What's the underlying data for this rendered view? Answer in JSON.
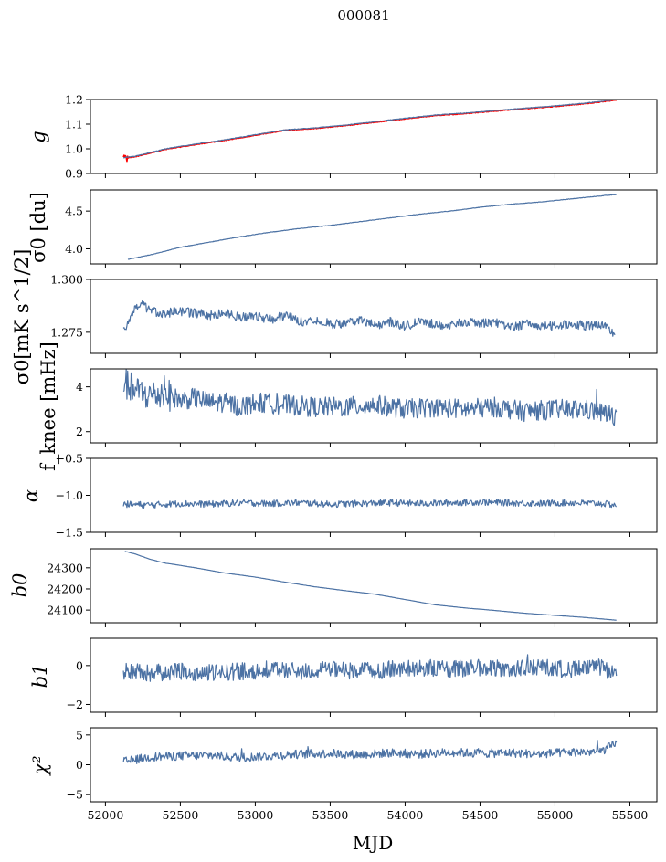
{
  "title": "000081",
  "line_color": "#4c72a4",
  "fit_color": "#ff0000",
  "chart_data": [
    {
      "type": "line",
      "ylabel": "g",
      "ylim": [
        0.9,
        1.2
      ],
      "yticks": [
        0.9,
        1.0,
        1.1,
        1.2
      ],
      "ytick_labels": [
        "0.9",
        "1.0",
        "1.1",
        "1.2"
      ],
      "series": [
        {
          "x": [
            52120,
            52200,
            52400,
            52600,
            52800,
            53000,
            53200,
            53400,
            53600,
            53800,
            54000,
            54200,
            54400,
            54600,
            54800,
            55000,
            55200,
            55410
          ],
          "y": [
            0.962,
            0.968,
            0.998,
            1.017,
            1.035,
            1.055,
            1.075,
            1.083,
            1.094,
            1.108,
            1.122,
            1.135,
            1.143,
            1.153,
            1.163,
            1.172,
            1.183,
            1.198
          ]
        },
        {
          "x": [
            52120,
            52200,
            52400,
            52600,
            52800,
            53000,
            53200,
            53400,
            53600,
            53800,
            54000,
            54200,
            54400,
            54600,
            54800,
            55000,
            55200,
            55410
          ],
          "y": [
            0.964,
            0.97,
            1.0,
            1.019,
            1.037,
            1.057,
            1.077,
            1.085,
            1.096,
            1.11,
            1.124,
            1.137,
            1.145,
            1.155,
            1.165,
            1.174,
            1.185,
            1.2
          ]
        }
      ]
    },
    {
      "type": "line",
      "ylabel": "σ0 [du]",
      "ylim": [
        3.8,
        4.78
      ],
      "yticks": [
        4.0,
        4.5
      ],
      "ytick_labels": [
        "4.0",
        "4.5"
      ],
      "series": [
        {
          "x": [
            52150,
            52300,
            52500,
            52700,
            52900,
            53100,
            53300,
            53500,
            53700,
            53900,
            54100,
            54300,
            54500,
            54700,
            54900,
            55100,
            55300,
            55410
          ],
          "y": [
            3.86,
            3.92,
            4.02,
            4.09,
            4.16,
            4.22,
            4.27,
            4.31,
            4.36,
            4.41,
            4.46,
            4.5,
            4.55,
            4.59,
            4.62,
            4.66,
            4.7,
            4.72
          ]
        }
      ]
    },
    {
      "type": "line",
      "ylabel": "σ0[mK s^1/2]",
      "ylim": [
        1.265,
        1.3
      ],
      "yticks": [
        1.275,
        1.3
      ],
      "ytick_labels": [
        "1.275",
        "1.300"
      ],
      "series": [
        {
          "x": [
            52120,
            52150,
            52200,
            52250,
            52300,
            52400,
            52500,
            52600,
            52700,
            52800,
            52900,
            53000,
            53100,
            53200,
            53300,
            53400,
            53500,
            53600,
            53700,
            53800,
            53900,
            54000,
            54100,
            54200,
            54300,
            54400,
            54500,
            54600,
            54700,
            54800,
            54900,
            55000,
            55100,
            55200,
            55300,
            55400
          ],
          "y": [
            1.276,
            1.279,
            1.286,
            1.288,
            1.285,
            1.284,
            1.285,
            1.284,
            1.283,
            1.284,
            1.282,
            1.283,
            1.281,
            1.283,
            1.28,
            1.281,
            1.279,
            1.279,
            1.281,
            1.278,
            1.28,
            1.278,
            1.28,
            1.279,
            1.278,
            1.28,
            1.279,
            1.28,
            1.277,
            1.279,
            1.278,
            1.278,
            1.279,
            1.278,
            1.279,
            1.274
          ]
        }
      ]
    },
    {
      "type": "line",
      "ylabel": "f_knee [mHz]",
      "ylim": [
        1.5,
        4.8
      ],
      "yticks": [
        2,
        4
      ],
      "ytick_labels": [
        "2",
        "4"
      ],
      "series": [
        {
          "x": [
            52120,
            52200,
            52300,
            52400,
            52500,
            52600,
            52700,
            52800,
            52900,
            53000,
            53200,
            53400,
            53600,
            53800,
            54000,
            54200,
            54400,
            54600,
            54800,
            55000,
            55200,
            55410
          ],
          "y": [
            4.2,
            3.8,
            3.6,
            3.7,
            3.4,
            3.5,
            3.3,
            3.3,
            3.1,
            3.3,
            3.2,
            3.1,
            3.1,
            3.2,
            3.0,
            3.1,
            3.0,
            3.1,
            2.9,
            3.0,
            3.0,
            2.7
          ]
        }
      ]
    },
    {
      "type": "line",
      "ylabel": "α",
      "ylim": [
        -1.5,
        -0.5
      ],
      "yticks": [
        -1.5,
        -1.0,
        -0.5
      ],
      "ytick_labels": [
        "−1.5",
        "−1.0",
        "−0.5"
      ],
      "series": [
        {
          "x": [
            52120,
            52300,
            52500,
            52700,
            52900,
            53100,
            53300,
            53500,
            53700,
            53900,
            54100,
            54300,
            54500,
            54700,
            54900,
            55100,
            55300,
            55410
          ],
          "y": [
            -1.12,
            -1.13,
            -1.11,
            -1.12,
            -1.1,
            -1.11,
            -1.1,
            -1.12,
            -1.11,
            -1.1,
            -1.11,
            -1.1,
            -1.09,
            -1.1,
            -1.11,
            -1.1,
            -1.11,
            -1.13
          ]
        }
      ]
    },
    {
      "type": "line",
      "ylabel": "b0",
      "ylim": [
        24040,
        24390
      ],
      "yticks": [
        24100,
        24200,
        24300
      ],
      "ytick_labels": [
        "24100",
        "24200",
        "24300"
      ],
      "series": [
        {
          "x": [
            52130,
            52200,
            52300,
            52400,
            52600,
            52800,
            53000,
            53200,
            53400,
            53600,
            53800,
            54000,
            54200,
            54400,
            54600,
            54800,
            55000,
            55200,
            55410
          ],
          "y": [
            24378,
            24365,
            24340,
            24322,
            24300,
            24275,
            24256,
            24232,
            24210,
            24192,
            24175,
            24150,
            24125,
            24110,
            24098,
            24085,
            24075,
            24065,
            24052
          ]
        }
      ]
    },
    {
      "type": "line",
      "ylabel": "b1",
      "ylim": [
        -2.4,
        1.4
      ],
      "yticks": [
        -2,
        0
      ],
      "ytick_labels": [
        "−2",
        "0"
      ],
      "series": [
        {
          "x": [
            52120,
            52300,
            52500,
            52700,
            52900,
            53100,
            53300,
            53500,
            53700,
            53900,
            54100,
            54300,
            54500,
            54700,
            54900,
            55100,
            55300,
            55410
          ],
          "y": [
            -0.3,
            -0.4,
            -0.3,
            -0.4,
            -0.3,
            -0.2,
            -0.3,
            -0.2,
            -0.3,
            -0.2,
            -0.1,
            -0.2,
            -0.1,
            -0.2,
            -0.1,
            -0.2,
            -0.1,
            -0.4
          ]
        }
      ]
    },
    {
      "type": "line",
      "ylabel": "χ²",
      "ylim": [
        -6.2,
        6.2
      ],
      "yticks": [
        -5,
        0,
        5
      ],
      "ytick_labels": [
        "−5",
        "0",
        "5"
      ],
      "series": [
        {
          "x": [
            52120,
            52300,
            52500,
            52700,
            52900,
            53100,
            53300,
            53500,
            53700,
            53900,
            54100,
            54300,
            54500,
            54700,
            54900,
            55100,
            55300,
            55410
          ],
          "y": [
            0.5,
            1.3,
            1.5,
            1.6,
            1.2,
            1.5,
            1.8,
            1.9,
            1.7,
            2.0,
            1.8,
            2.1,
            1.9,
            2.0,
            1.8,
            2.1,
            2.2,
            3.5
          ]
        }
      ]
    }
  ],
  "xaxis": {
    "label": "MJD",
    "range": [
      51900,
      55680
    ],
    "ticks": [
      52000,
      52500,
      53000,
      53500,
      54000,
      54500,
      55000,
      55500
    ],
    "tick_labels": [
      "52000",
      "52500",
      "53000",
      "53500",
      "54000",
      "54500",
      "55000",
      "55500"
    ]
  }
}
